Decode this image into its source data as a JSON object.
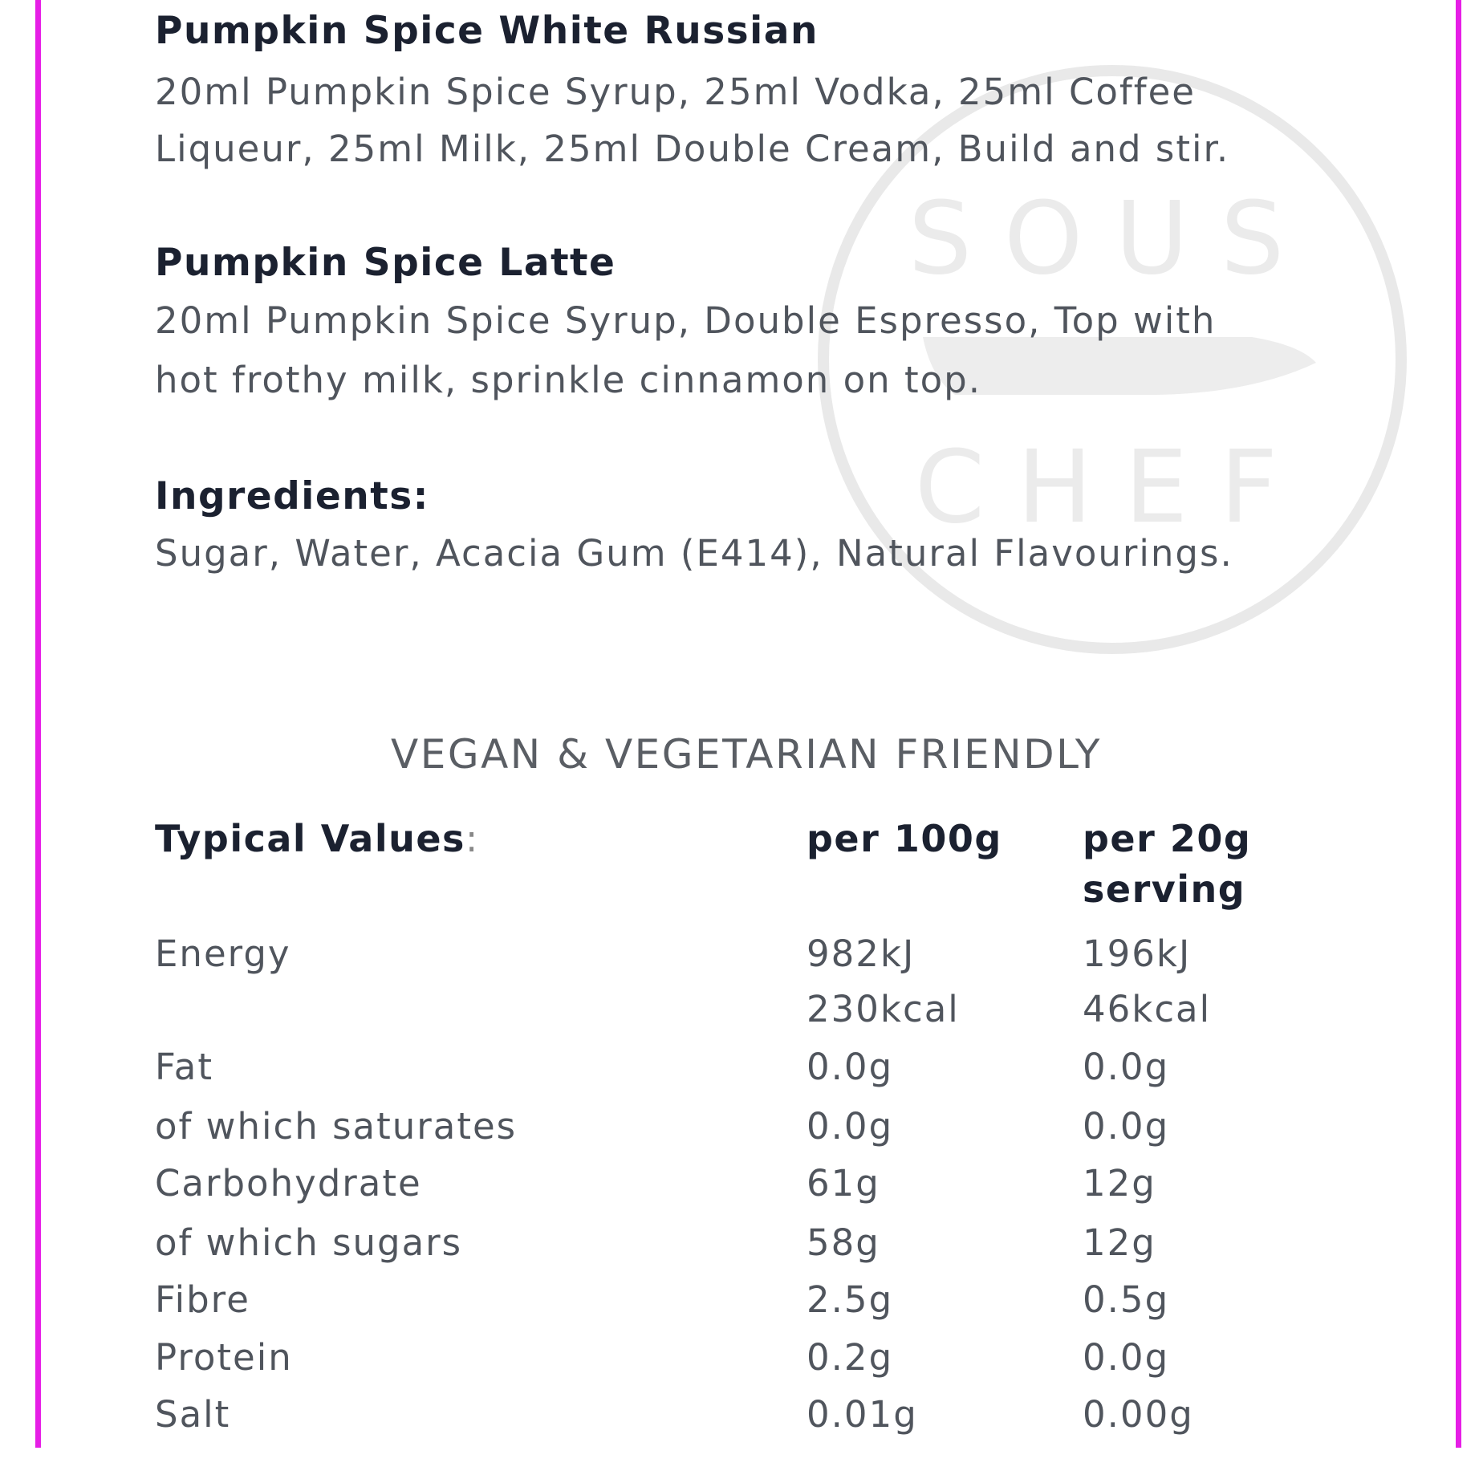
{
  "border_color": "#e61ee6",
  "watermark": {
    "line1": "SOUS",
    "line2": "CHEF",
    "icon": "knife-icon"
  },
  "recipes": [
    {
      "title": "Pumpkin Spice White Russian",
      "lines": [
        "20ml Pumpkin Spice Syrup, 25ml Vodka, 25ml Coffee",
        "Liqueur, 25ml Milk, 25ml Double Cream, Build and stir."
      ]
    },
    {
      "title": "Pumpkin Spice Latte",
      "lines": [
        "20ml Pumpkin Spice Syrup, Double Espresso, Top with",
        "hot frothy milk, sprinkle cinnamon on top."
      ]
    }
  ],
  "ingredients": {
    "label": "Ingredients:",
    "text": "Sugar, Water, Acacia Gum (E414), Natural Flavourings."
  },
  "badge": "VEGAN & VEGETARIAN FRIENDLY",
  "nutrition": {
    "header": {
      "label": "Typical Values",
      "colon": ":",
      "col1": "per 100g",
      "col2_line1": "per 20g",
      "col2_line2": "serving"
    },
    "rows": [
      {
        "name": "Energy",
        "per100": "982kJ",
        "serving": "196kJ"
      },
      {
        "name": "",
        "per100": "230kcal",
        "serving": "46kcal"
      },
      {
        "name": "Fat",
        "per100": "0.0g",
        "serving": "0.0g"
      },
      {
        "name": "of which saturates",
        "per100": "0.0g",
        "serving": "0.0g"
      },
      {
        "name": "Carbohydrate",
        "per100": "61g",
        "serving": "12g"
      },
      {
        "name": "of which sugars",
        "per100": "58g",
        "serving": "12g"
      },
      {
        "name": "Fibre",
        "per100": "2.5g",
        "serving": "0.5g"
      },
      {
        "name": "Protein",
        "per100": "0.2g",
        "serving": "0.0g"
      },
      {
        "name": "Salt",
        "per100": "0.01g",
        "serving": "0.00g"
      }
    ]
  }
}
